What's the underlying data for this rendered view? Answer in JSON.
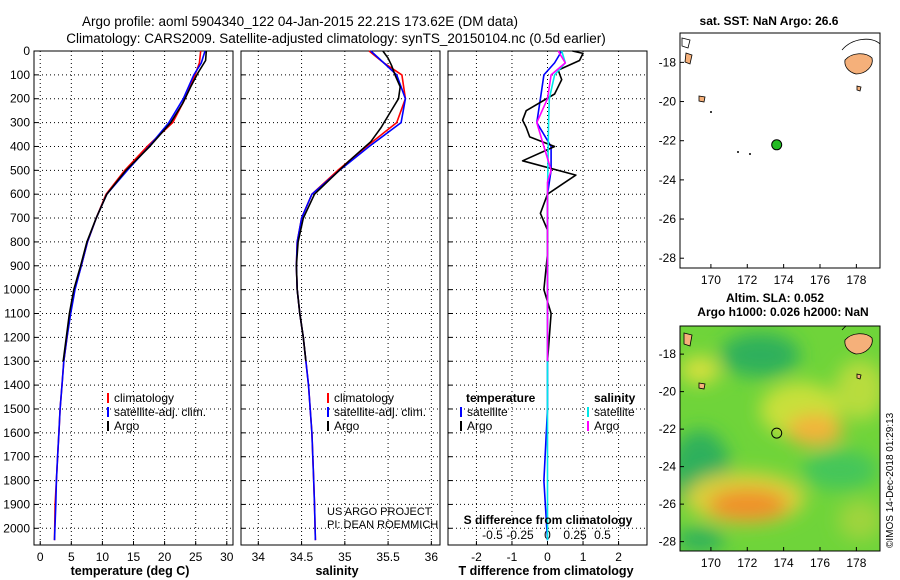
{
  "title_line1": "Argo profile: aoml 5904340_122 04-Jan-2015 22.21S 173.62E (DM data)",
  "title_line2": "Climatology: CARS2009. Satellite-adjusted climatology: synTS_20150104.nc (0.5d earlier)",
  "colors": {
    "climatology": "#ff0000",
    "satellite": "#0000ff",
    "argo": "#000000",
    "sal_satellite": "#00e8e8",
    "sal_argo": "#ff00ff"
  },
  "depth_ticks": [
    "0",
    "100",
    "200",
    "300",
    "400",
    "500",
    "600",
    "700",
    "800",
    "900",
    "1000",
    "1100",
    "1200",
    "1300",
    "1400",
    "1500",
    "1600",
    "1700",
    "1800",
    "1900",
    "2000"
  ],
  "chart_data": [
    {
      "type": "line",
      "id": "temperature",
      "xlabel": "temperature (deg C)",
      "ylabel": "depth",
      "xlim": [
        -1,
        31
      ],
      "ylim": [
        2070,
        0
      ],
      "x_ticks": [
        0,
        5,
        10,
        15,
        20,
        25,
        30
      ],
      "x_tick_labels": [
        "0",
        "5",
        "10",
        "15",
        "20",
        "25",
        "30"
      ],
      "legend": [
        "climatology",
        "satellite-adj. clim.",
        "Argo"
      ],
      "legend_placement": "lower-center",
      "series": [
        {
          "name": "climatology",
          "color_key": "climatology",
          "points": [
            [
              25.8,
              0
            ],
            [
              25.6,
              50
            ],
            [
              24.9,
              100
            ],
            [
              23.3,
              200
            ],
            [
              21.3,
              300
            ],
            [
              17.2,
              400
            ],
            [
              13.6,
              500
            ],
            [
              10.6,
              600
            ],
            [
              9.0,
              700
            ],
            [
              7.6,
              800
            ],
            [
              6.6,
              900
            ],
            [
              5.5,
              1000
            ],
            [
              4.8,
              1100
            ],
            [
              4.3,
              1200
            ],
            [
              3.8,
              1300
            ],
            [
              3.5,
              1400
            ],
            [
              3.2,
              1500
            ],
            [
              3.0,
              1600
            ],
            [
              2.8,
              1700
            ],
            [
              2.6,
              1800
            ],
            [
              2.4,
              1900
            ],
            [
              2.3,
              2050
            ]
          ]
        },
        {
          "name": "satellite-adj. clim.",
          "color_key": "satellite",
          "points": [
            [
              26.5,
              0
            ],
            [
              25.9,
              50
            ],
            [
              24.7,
              100
            ],
            [
              23.0,
              200
            ],
            [
              20.7,
              300
            ],
            [
              17.5,
              400
            ],
            [
              14.0,
              500
            ],
            [
              10.7,
              600
            ],
            [
              9.0,
              700
            ],
            [
              7.6,
              800
            ],
            [
              6.6,
              900
            ],
            [
              5.6,
              1000
            ],
            [
              4.9,
              1100
            ],
            [
              4.3,
              1200
            ],
            [
              3.8,
              1300
            ],
            [
              3.5,
              1400
            ],
            [
              3.2,
              1500
            ],
            [
              3.0,
              1600
            ],
            [
              2.8,
              1700
            ],
            [
              2.6,
              1800
            ],
            [
              2.5,
              1900
            ],
            [
              2.3,
              2050
            ]
          ]
        },
        {
          "name": "Argo",
          "color_key": "argo",
          "points": [
            [
              26.7,
              0
            ],
            [
              26.6,
              40
            ],
            [
              25.4,
              90
            ],
            [
              24.2,
              150
            ],
            [
              22.9,
              220
            ],
            [
              21.0,
              300
            ],
            [
              17.6,
              400
            ],
            [
              13.8,
              500
            ],
            [
              10.7,
              600
            ],
            [
              9.0,
              700
            ],
            [
              7.5,
              800
            ],
            [
              6.5,
              900
            ],
            [
              5.4,
              1000
            ],
            [
              4.7,
              1100
            ],
            [
              4.2,
              1200
            ],
            [
              3.7,
              1300
            ]
          ]
        }
      ]
    },
    {
      "type": "line",
      "id": "salinity",
      "xlabel": "salinity",
      "ylabel": "depth",
      "xlim": [
        33.8,
        36.1
      ],
      "ylim": [
        2070,
        0
      ],
      "x_ticks": [
        34,
        34.5,
        35,
        35.5,
        36
      ],
      "x_tick_labels": [
        "34",
        "34.5",
        "35",
        "35.5",
        "36"
      ],
      "legend": [
        "climatology",
        "satellite-adj. clim.",
        "Argo"
      ],
      "legend_placement": "lower-center",
      "annotation": [
        "US ARGO PROJECT",
        "PI: DEAN ROEMMICH"
      ],
      "series": [
        {
          "name": "climatology",
          "color_key": "climatology",
          "points": [
            [
              35.28,
              0
            ],
            [
              35.45,
              50
            ],
            [
              35.66,
              100
            ],
            [
              35.7,
              200
            ],
            [
              35.6,
              300
            ],
            [
              35.25,
              400
            ],
            [
              34.92,
              500
            ],
            [
              34.62,
              600
            ],
            [
              34.5,
              700
            ],
            [
              34.45,
              800
            ],
            [
              34.44,
              900
            ],
            [
              34.45,
              1000
            ],
            [
              34.48,
              1100
            ],
            [
              34.52,
              1200
            ],
            [
              34.55,
              1300
            ],
            [
              34.58,
              1400
            ],
            [
              34.6,
              1500
            ],
            [
              34.62,
              1600
            ],
            [
              34.63,
              1700
            ],
            [
              34.64,
              1800
            ],
            [
              34.65,
              1900
            ],
            [
              34.66,
              2050
            ]
          ]
        },
        {
          "name": "satellite-adj. clim.",
          "color_key": "satellite",
          "points": [
            [
              35.3,
              0
            ],
            [
              35.45,
              50
            ],
            [
              35.6,
              100
            ],
            [
              35.7,
              200
            ],
            [
              35.65,
              300
            ],
            [
              35.28,
              400
            ],
            [
              34.94,
              500
            ],
            [
              34.62,
              600
            ],
            [
              34.5,
              700
            ],
            [
              34.45,
              800
            ],
            [
              34.44,
              900
            ],
            [
              34.45,
              1000
            ],
            [
              34.48,
              1100
            ],
            [
              34.52,
              1200
            ],
            [
              34.55,
              1300
            ],
            [
              34.58,
              1400
            ],
            [
              34.6,
              1500
            ],
            [
              34.62,
              1600
            ],
            [
              34.63,
              1700
            ],
            [
              34.64,
              1800
            ],
            [
              34.65,
              1900
            ],
            [
              34.66,
              2050
            ]
          ]
        },
        {
          "name": "Argo",
          "color_key": "argo",
          "points": [
            [
              35.44,
              0
            ],
            [
              35.5,
              30
            ],
            [
              35.54,
              60
            ],
            [
              35.58,
              100
            ],
            [
              35.64,
              150
            ],
            [
              35.62,
              200
            ],
            [
              35.52,
              260
            ],
            [
              35.42,
              320
            ],
            [
              35.3,
              380
            ],
            [
              35.05,
              460
            ],
            [
              34.88,
              520
            ],
            [
              34.65,
              600
            ],
            [
              34.52,
              700
            ],
            [
              34.46,
              800
            ],
            [
              34.44,
              900
            ],
            [
              34.45,
              1000
            ],
            [
              34.48,
              1100
            ],
            [
              34.52,
              1200
            ],
            [
              34.55,
              1300
            ]
          ]
        }
      ]
    },
    {
      "type": "line",
      "id": "difference",
      "xlabel": "T difference from climatology",
      "x2label": "S difference from climatology",
      "ylabel": "depth",
      "xlim": [
        -2.8,
        2.8
      ],
      "ylim": [
        2070,
        0
      ],
      "x_ticks": [
        -2,
        -1,
        0,
        1,
        2
      ],
      "x_tick_labels": [
        "-2",
        "-1",
        "0",
        "1",
        "2"
      ],
      "s_ticks": [
        -0.5,
        -0.25,
        0,
        0.25,
        0.5
      ],
      "s_tick_labels": [
        "-0.5",
        "-0.25",
        "0",
        "0.25",
        "0.5"
      ],
      "legend_left_title": "temperature",
      "legend_right_title": "salinity",
      "legend_left": [
        "satellite",
        "Argo"
      ],
      "legend_right": [
        "satellite",
        "Argo"
      ],
      "series": [
        {
          "name": "T satellite",
          "color_key": "satellite",
          "points": [
            [
              0.4,
              0
            ],
            [
              0.2,
              50
            ],
            [
              -0.1,
              100
            ],
            [
              -0.2,
              200
            ],
            [
              -0.3,
              300
            ],
            [
              0.1,
              400
            ],
            [
              0.1,
              500
            ],
            [
              0,
              600
            ],
            [
              0,
              800
            ],
            [
              0,
              1000
            ],
            [
              0,
              1500
            ],
            [
              -0.1,
              1800
            ],
            [
              0,
              2050
            ]
          ]
        },
        {
          "name": "T Argo",
          "color_key": "argo",
          "points": [
            [
              0.7,
              0
            ],
            [
              1.0,
              10
            ],
            [
              0.9,
              40
            ],
            [
              0.3,
              80
            ],
            [
              0.4,
              120
            ],
            [
              0.2,
              180
            ],
            [
              -0.6,
              250
            ],
            [
              -0.7,
              290
            ],
            [
              -0.6,
              320
            ],
            [
              -0.5,
              360
            ],
            [
              0.2,
              400
            ],
            [
              -0.7,
              460
            ],
            [
              0.8,
              520
            ],
            [
              0.4,
              560
            ],
            [
              0,
              600
            ],
            [
              -0.2,
              680
            ],
            [
              0,
              750
            ],
            [
              0,
              850
            ],
            [
              -0.1,
              1000
            ],
            [
              0.1,
              1100
            ],
            [
              0,
              1300
            ]
          ]
        },
        {
          "name": "S satellite",
          "color_key": "sal_satellite",
          "points": [
            [
              0.4,
              0
            ],
            [
              0.5,
              50
            ],
            [
              0.2,
              100
            ],
            [
              0.05,
              200
            ],
            [
              0.03,
              300
            ],
            [
              0.02,
              400
            ],
            [
              0,
              600
            ],
            [
              0,
              1000
            ],
            [
              0,
              1500
            ],
            [
              0,
              2050
            ]
          ]
        },
        {
          "name": "S Argo",
          "color_key": "sal_argo",
          "points": [
            [
              0.3,
              0
            ],
            [
              0.5,
              50
            ],
            [
              0.1,
              100
            ],
            [
              0,
              200
            ],
            [
              -0.3,
              300
            ],
            [
              -0.1,
              400
            ],
            [
              0,
              450
            ],
            [
              0.1,
              500
            ],
            [
              0,
              550
            ],
            [
              0,
              700
            ],
            [
              0,
              1000
            ],
            [
              0,
              1300
            ]
          ]
        }
      ]
    },
    {
      "type": "scatter",
      "id": "sst_map",
      "title": "sat. SST: NaN Argo: 26.6",
      "xlim": [
        168.3,
        179.3
      ],
      "ylim": [
        -28.5,
        -16.5
      ],
      "x_ticks": [
        170,
        172,
        174,
        176,
        178
      ],
      "x_tick_labels": [
        "170",
        "172",
        "174",
        "176",
        "178"
      ],
      "y_ticks": [
        -18,
        -20,
        -22,
        -24,
        -26,
        -28
      ],
      "y_tick_labels": [
        "-18",
        "-20",
        "-22",
        "-24",
        "-26",
        "-28"
      ],
      "profile_location": [
        173.62,
        -22.21
      ]
    },
    {
      "type": "heatmap",
      "id": "altimetry_map",
      "title_line1": "Altim. SLA: 0.052",
      "title_line2": "Argo h1000: 0.026 h2000: NaN",
      "xlim": [
        168.3,
        179.3
      ],
      "ylim": [
        -28.5,
        -16.5
      ],
      "x_ticks": [
        170,
        172,
        174,
        176,
        178
      ],
      "x_tick_labels": [
        "170",
        "172",
        "174",
        "176",
        "178"
      ],
      "y_ticks": [
        -18,
        -20,
        -22,
        -24,
        -26,
        -28
      ],
      "y_tick_labels": [
        "-18",
        "-20",
        "-22",
        "-24",
        "-26",
        "-28"
      ],
      "profile_location": [
        173.62,
        -22.21
      ]
    }
  ],
  "credit": "©IMOS 14-Dec-2018 01:29:13"
}
